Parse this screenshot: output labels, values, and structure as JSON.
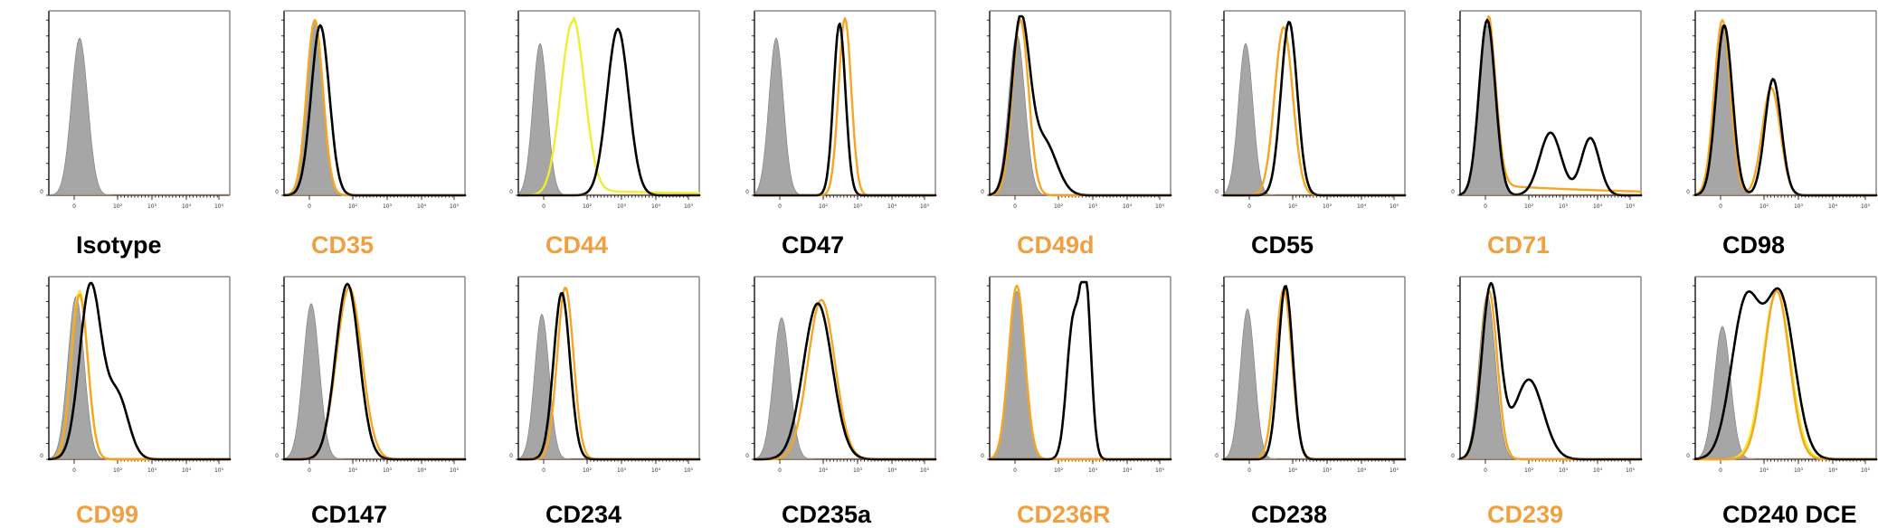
{
  "chart_data": {
    "type": "histogram-grid",
    "title": "",
    "xlabel": "",
    "ylabel": "",
    "x_tick_labels": [
      "0",
      "10²",
      "10³",
      "10⁴",
      "10⁵"
    ],
    "y_tick_label": "0",
    "xlim": [
      0,
      1
    ],
    "ylim": [
      0,
      1
    ],
    "colors": {
      "isotype": "#a6a6a6",
      "black": "#000000",
      "orange": "#f5a623",
      "yellow": "#eeee33",
      "label_orange": "#f0a040",
      "label_black": "#000000"
    },
    "panels": [
      {
        "label": "Isotype",
        "label_color": "black",
        "isotype": [
          0.17,
          0.045,
          0.88
        ],
        "curves": []
      },
      {
        "label": "CD35",
        "label_color": "orange",
        "isotype": [
          0.17,
          0.045,
          0.98
        ],
        "curves": [
          {
            "color": "orange",
            "peaks": [
              [
                0.17,
                0.045,
                0.98
              ]
            ]
          },
          {
            "color": "black",
            "peaks": [
              [
                0.2,
                0.05,
                0.95
              ]
            ]
          }
        ]
      },
      {
        "label": "CD44",
        "label_color": "orange",
        "isotype": [
          0.12,
          0.04,
          0.85
        ],
        "curves": [
          {
            "color": "yellow",
            "peaks": [
              [
                0.3,
                0.065,
                0.97
              ]
            ],
            "tail": 0.04
          },
          {
            "color": "black",
            "peaks": [
              [
                0.55,
                0.06,
                0.93
              ]
            ]
          }
        ]
      },
      {
        "label": "CD47",
        "label_color": "black",
        "isotype": [
          0.12,
          0.04,
          0.88
        ],
        "curves": [
          {
            "color": "orange",
            "peaks": [
              [
                0.5,
                0.035,
                0.99
              ]
            ]
          },
          {
            "color": "black",
            "peaks": [
              [
                0.47,
                0.033,
                0.96
              ]
            ]
          }
        ]
      },
      {
        "label": "CD49d",
        "label_color": "orange",
        "isotype": [
          0.15,
          0.045,
          0.9
        ],
        "curves": [
          {
            "color": "orange",
            "peaks": [
              [
                0.17,
                0.045,
                0.98
              ]
            ]
          },
          {
            "color": "black",
            "peaks": [
              [
                0.17,
                0.05,
                0.96
              ],
              [
                0.3,
                0.07,
                0.3
              ]
            ]
          }
        ]
      },
      {
        "label": "CD55",
        "label_color": "black",
        "isotype": [
          0.12,
          0.04,
          0.85
        ],
        "curves": [
          {
            "color": "orange",
            "peaks": [
              [
                0.33,
                0.05,
                0.94
              ]
            ]
          },
          {
            "color": "black",
            "peaks": [
              [
                0.36,
                0.045,
                0.97
              ]
            ]
          }
        ]
      },
      {
        "label": "CD71",
        "label_color": "orange",
        "isotype": [
          0.15,
          0.045,
          0.95
        ],
        "curves": [
          {
            "color": "orange",
            "peaks": [
              [
                0.15,
                0.045,
                0.98
              ]
            ],
            "tail": 0.07
          },
          {
            "color": "black",
            "peaks": [
              [
                0.15,
                0.045,
                0.98
              ],
              [
                0.5,
                0.06,
                0.35
              ],
              [
                0.72,
                0.05,
                0.32
              ]
            ]
          }
        ]
      },
      {
        "label": "CD98",
        "label_color": "black",
        "isotype": [
          0.15,
          0.045,
          0.95
        ],
        "curves": [
          {
            "color": "orange",
            "peaks": [
              [
                0.15,
                0.045,
                0.98
              ],
              [
                0.42,
                0.05,
                0.6
              ]
            ]
          },
          {
            "color": "black",
            "peaks": [
              [
                0.16,
                0.045,
                0.95
              ],
              [
                0.43,
                0.045,
                0.65
              ]
            ]
          }
        ]
      },
      {
        "label": "CD99",
        "label_color": "orange",
        "isotype": [
          0.15,
          0.045,
          0.92
        ],
        "curves": [
          {
            "color": "yellow",
            "peaks": [
              [
                0.17,
                0.045,
                0.95
              ]
            ]
          },
          {
            "color": "orange",
            "peaks": [
              [
                0.17,
                0.045,
                0.93
              ]
            ]
          },
          {
            "color": "black",
            "peaks": [
              [
                0.23,
                0.06,
                0.98
              ],
              [
                0.38,
                0.06,
                0.35
              ]
            ]
          }
        ]
      },
      {
        "label": "CD147",
        "label_color": "black",
        "isotype": [
          0.15,
          0.045,
          0.88
        ],
        "curves": [
          {
            "color": "orange",
            "peaks": [
              [
                0.36,
                0.07,
                0.97
              ]
            ]
          },
          {
            "color": "black",
            "peaks": [
              [
                0.35,
                0.065,
                0.99
              ]
            ]
          }
        ]
      },
      {
        "label": "CD234",
        "label_color": "black",
        "isotype": [
          0.13,
          0.04,
          0.82
        ],
        "curves": [
          {
            "color": "orange",
            "peaks": [
              [
                0.26,
                0.045,
                0.97
              ]
            ]
          },
          {
            "color": "black",
            "peaks": [
              [
                0.24,
                0.045,
                0.94
              ]
            ]
          }
        ]
      },
      {
        "label": "CD235a",
        "label_color": "black",
        "isotype": [
          0.15,
          0.045,
          0.8
        ],
        "curves": [
          {
            "color": "orange",
            "peaks": [
              [
                0.37,
                0.075,
                0.9
              ]
            ]
          },
          {
            "color": "black",
            "peaks": [
              [
                0.35,
                0.08,
                0.88
              ]
            ]
          }
        ]
      },
      {
        "label": "CD236R",
        "label_color": "orange",
        "isotype": [
          0.15,
          0.045,
          0.95
        ],
        "curves": [
          {
            "color": "orange",
            "peaks": [
              [
                0.15,
                0.045,
                0.98
              ]
            ]
          },
          {
            "color": "black",
            "peaks": [
              [
                0.46,
                0.035,
                0.75
              ],
              [
                0.53,
                0.03,
                0.98
              ]
            ]
          }
        ]
      },
      {
        "label": "CD238",
        "label_color": "black",
        "isotype": [
          0.13,
          0.04,
          0.85
        ],
        "curves": [
          {
            "color": "orange",
            "peaks": [
              [
                0.33,
                0.045,
                0.96
              ]
            ]
          },
          {
            "color": "black",
            "peaks": [
              [
                0.34,
                0.04,
                0.98
              ]
            ]
          }
        ]
      },
      {
        "label": "CD239",
        "label_color": "orange",
        "isotype": [
          0.15,
          0.045,
          0.93
        ],
        "curves": [
          {
            "color": "orange",
            "peaks": [
              [
                0.16,
                0.045,
                0.95
              ]
            ]
          },
          {
            "color": "black",
            "peaks": [
              [
                0.17,
                0.05,
                0.98
              ],
              [
                0.38,
                0.08,
                0.45
              ]
            ]
          }
        ]
      },
      {
        "label": "CD240 DCE",
        "label_color": "black",
        "isotype": [
          0.15,
          0.045,
          0.75
        ],
        "curves": [
          {
            "color": "yellow",
            "peaks": [
              [
                0.45,
                0.075,
                0.95
              ]
            ]
          },
          {
            "color": "orange",
            "peaks": [
              [
                0.45,
                0.07,
                0.95
              ]
            ]
          },
          {
            "color": "black",
            "peaks": [
              [
                0.28,
                0.08,
                0.88
              ],
              [
                0.47,
                0.08,
                0.9
              ]
            ]
          }
        ]
      }
    ]
  }
}
